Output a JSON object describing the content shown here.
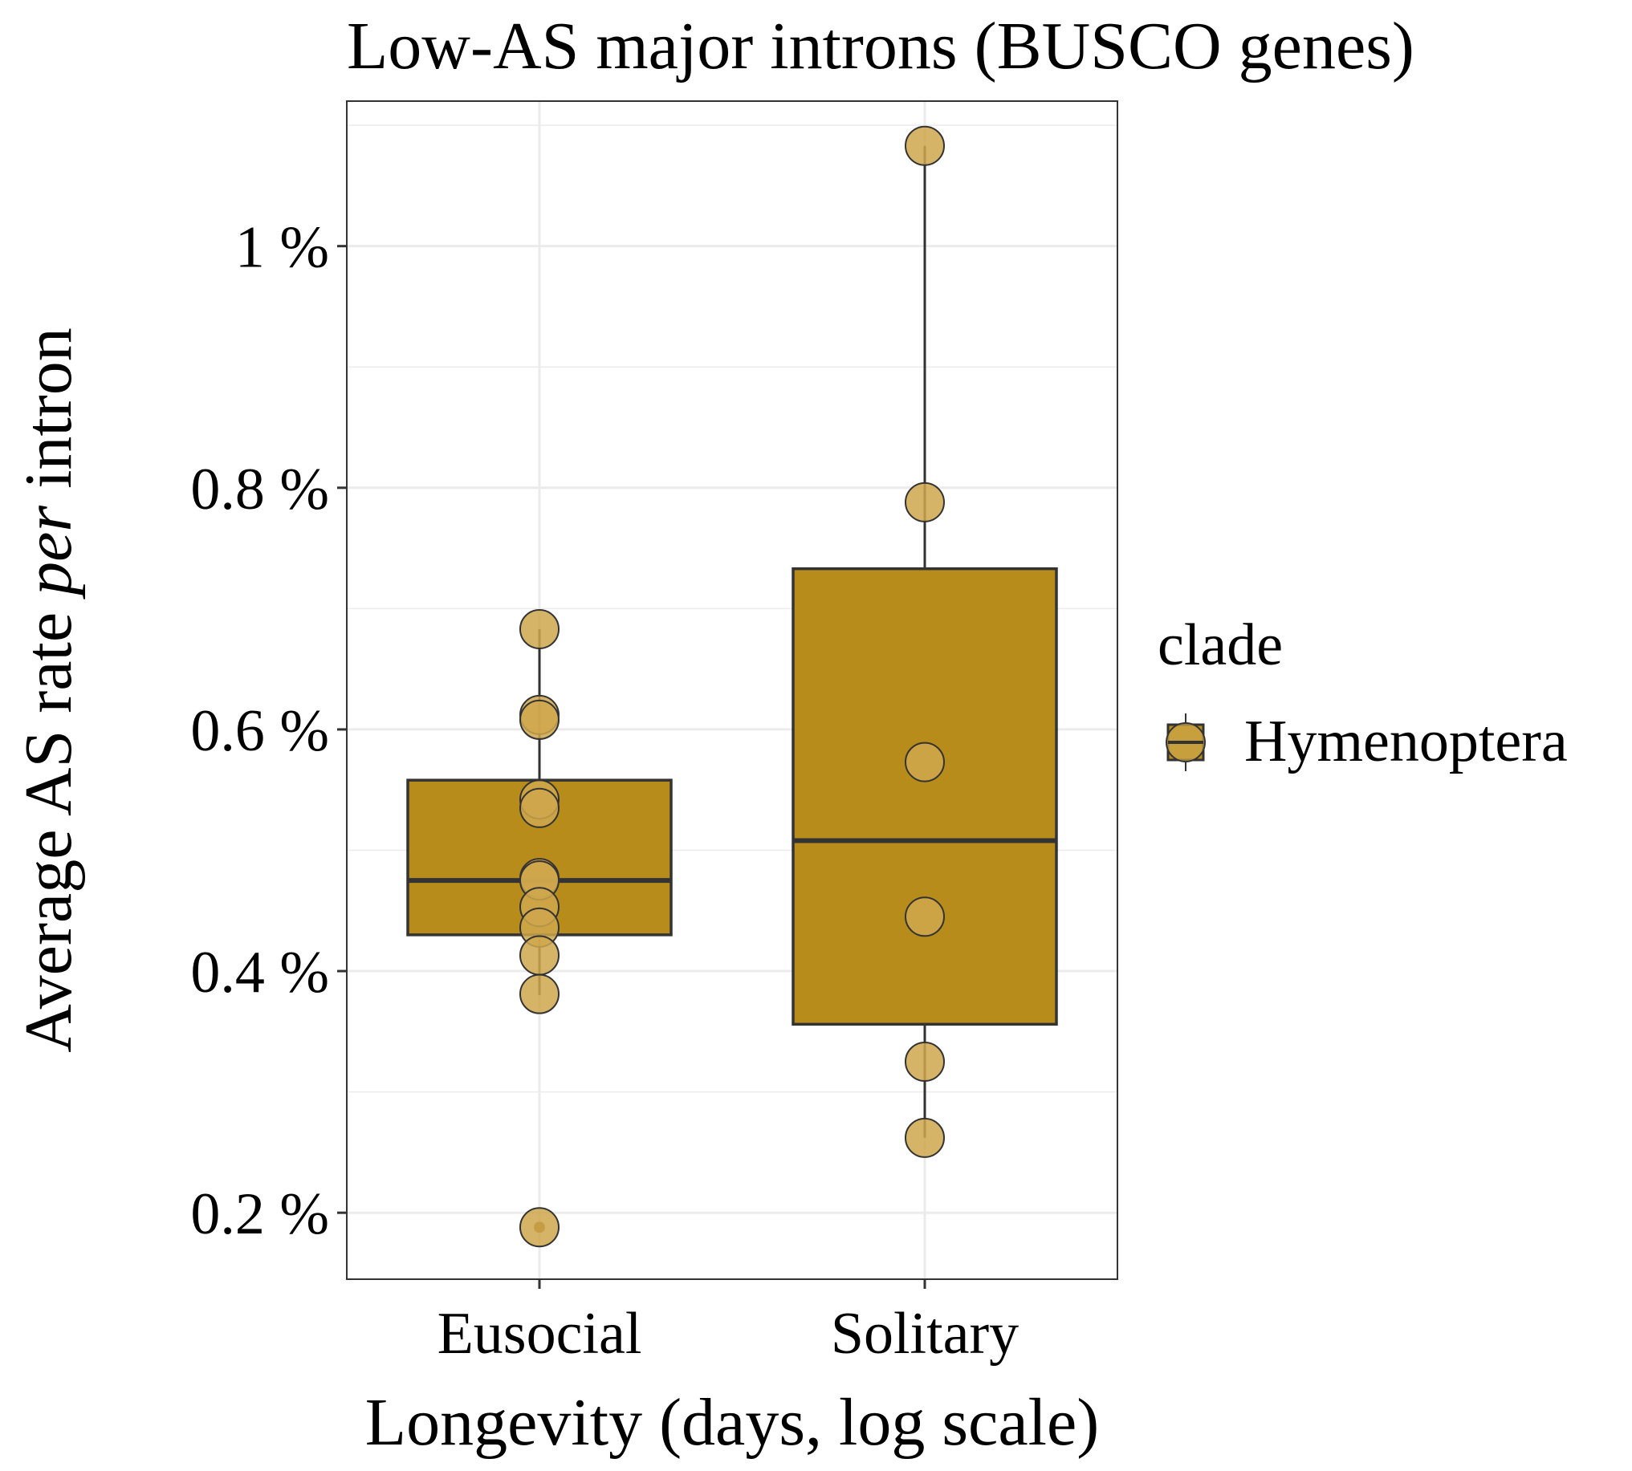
{
  "chart_data": {
    "type": "box",
    "title": "Low-AS major introns (BUSCO genes)",
    "xlabel": "Longevity (days, log scale)",
    "ylabel": {
      "before": "Average AS rate ",
      "italic": "per",
      "after": " intron"
    },
    "categories": [
      "Eusocial",
      "Solitary"
    ],
    "ylim": [
      0.145,
      1.12
    ],
    "yticks": [
      0.2,
      0.4,
      0.6,
      0.8,
      1.0
    ],
    "ytick_labels": [
      "0.2 %",
      "0.4 %",
      "0.6 %",
      "0.8 %",
      "1 %"
    ],
    "grid": true,
    "series": [
      {
        "name": "Hymenoptera",
        "boxes": [
          {
            "category": "Eusocial",
            "q1": 0.43,
            "median": 0.475,
            "q3": 0.558,
            "whisker_low": 0.38,
            "whisker_high": 0.683,
            "points": [
              0.683,
              0.612,
              0.608,
              0.542,
              0.535,
              0.477,
              0.475,
              0.453,
              0.436,
              0.413,
              0.381,
              0.188
            ],
            "outliers": [
              0.188
            ]
          },
          {
            "category": "Solitary",
            "q1": 0.356,
            "median": 0.508,
            "q3": 0.733,
            "whisker_low": 0.262,
            "whisker_high": 1.083,
            "points": [
              1.083,
              0.788,
              0.573,
              0.445,
              0.325,
              0.262
            ],
            "outliers": []
          }
        ]
      }
    ],
    "legend": {
      "title": "clade",
      "entries": [
        "Hymenoptera"
      ],
      "position": "right"
    },
    "colors": {
      "box_fill": "#B88C1B",
      "point_fill": "#CFA74C",
      "stroke": "#333333",
      "grid": "#EBEBEB",
      "panel_border": "#333333"
    }
  }
}
